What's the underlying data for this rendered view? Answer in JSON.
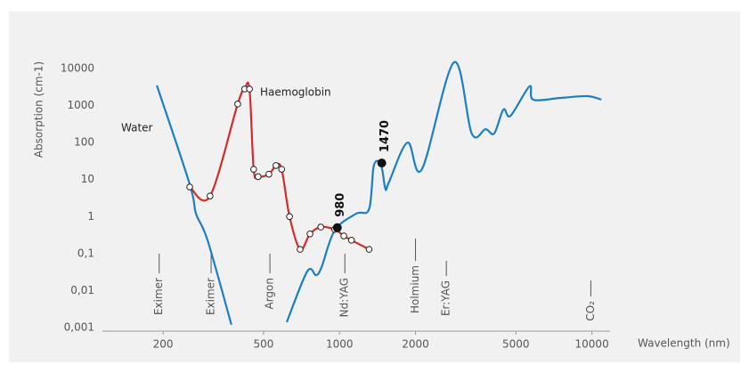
{
  "chart_data": {
    "type": "line",
    "x_label": "Wavelength (nm)",
    "y_label": "Absorption (cm-1)",
    "log_x": true,
    "log_y": true,
    "xlim": [
      115,
      11800
    ],
    "xticks": [
      200,
      500,
      1000,
      2000,
      5000,
      10000
    ],
    "ylim": [
      0.001,
      20000
    ],
    "yticks": [
      10000,
      1000,
      100,
      10,
      1,
      {
        "value": 0.1,
        "label": "0,1"
      },
      {
        "value": 0.01,
        "label": "0,01"
      },
      {
        "value": 0.001,
        "label": "0,001"
      }
    ],
    "series": [
      {
        "name": "Water",
        "color": "#1b7fc1",
        "x": [
          189,
          255,
          270,
          300,
          373,
          375,
          618,
          745,
          808,
          850,
          957,
          1164,
          1310,
          1368,
          1460,
          1520,
          1570,
          1860,
          2120,
          2840,
          3340,
          3790,
          4100,
          4460,
          4760,
          5660,
          5860,
          7530,
          9600,
          10900
        ],
        "values": [
          3500,
          7.5,
          1.2,
          0.23,
          0.0012,
          null,
          0.0014,
          0.033,
          0.026,
          0.044,
          0.42,
          1.2,
          1.6,
          24,
          25,
          5.6,
          8.5,
          100,
          19,
          14700,
          176,
          230,
          176,
          780,
          530,
          3300,
          1440,
          1610,
          1800,
          1450
        ]
      },
      {
        "name": "Haemoglobin",
        "color": "#d42b2b",
        "x": [
          255,
          307,
          395,
          421,
          440,
          457,
          476,
          525,
          560,
          590,
          634,
          698,
          764,
          843,
          957,
          1040,
          1115,
          1310
        ],
        "values": [
          6.3,
          3.6,
          1100,
          2800,
          2800,
          19,
          12,
          14,
          24,
          19,
          1,
          0.13,
          0.34,
          0.52,
          0.45,
          0.3,
          0.23,
          0.13
        ]
      }
    ],
    "highlights": [
      {
        "x": 980,
        "y": 0.5,
        "label": "980"
      },
      {
        "x": 1470,
        "y": 28,
        "label": "1470"
      }
    ],
    "lasers": [
      {
        "x": 193,
        "label": "Eximer"
      },
      {
        "x": 310,
        "label": "Eximer"
      },
      {
        "x": 530,
        "label": "Argon"
      },
      {
        "x": 1050,
        "label": "Nd:YAG"
      },
      {
        "x": 2000,
        "label": "Holmium"
      },
      {
        "x": 2650,
        "label": "Er:YAG"
      },
      {
        "x": 9900,
        "label": "CO₂"
      }
    ]
  }
}
